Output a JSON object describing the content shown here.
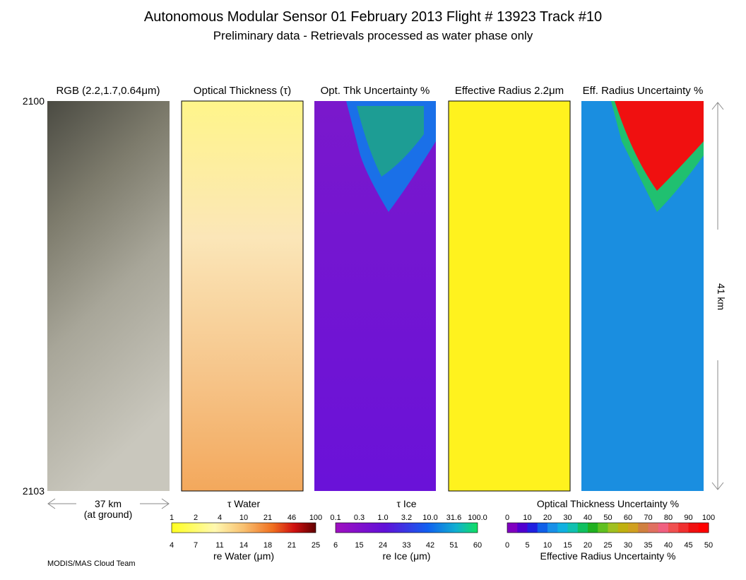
{
  "header": {
    "title": "Autonomous Modular Sensor  01 February 2013  Flight # 13923 Track #10",
    "subtitle": "Preliminary data - Retrievals processed as water phase only"
  },
  "panels": [
    {
      "title": "RGB (2.2,1.7,0.64μm)"
    },
    {
      "title": "Optical Thickness (τ)"
    },
    {
      "title": "Opt. Thk Uncertainty %"
    },
    {
      "title": "Effective Radius 2.2μm"
    },
    {
      "title": "Eff. Radius Uncertainty %"
    }
  ],
  "time_labels": {
    "start": "2100",
    "end": "2103"
  },
  "scale": {
    "along_track": "41 km",
    "cross_track": "37 km",
    "cross_track_note": "(at ground)"
  },
  "colorbars": [
    {
      "top_title": "τ Water",
      "top_labels": [
        "1",
        "2",
        "4",
        "10",
        "21",
        "46",
        "100"
      ],
      "bottom_labels": [
        "4",
        "7",
        "11",
        "14",
        "18",
        "21",
        "25"
      ],
      "bottom_title": "re Water (μm)"
    },
    {
      "top_title": "τ Ice",
      "top_labels": [
        "0.1",
        "0.3",
        "1.0",
        "3.2",
        "10.0",
        "31.6",
        "100.0"
      ],
      "bottom_labels": [
        "6",
        "15",
        "24",
        "33",
        "42",
        "51",
        "60"
      ],
      "bottom_title": "re Ice (μm)"
    },
    {
      "top_title": "Optical Thickness Uncertainty %",
      "top_labels": [
        "0",
        "10",
        "20",
        "30",
        "40",
        "50",
        "60",
        "70",
        "80",
        "90",
        "100"
      ],
      "bottom_labels": [
        "0",
        "5",
        "10",
        "15",
        "20",
        "25",
        "30",
        "35",
        "40",
        "45",
        "50"
      ],
      "bottom_title": "Effective Radius Uncertainty %"
    }
  ],
  "footer": {
    "credit": "MODIS/MAS Cloud Team"
  }
}
